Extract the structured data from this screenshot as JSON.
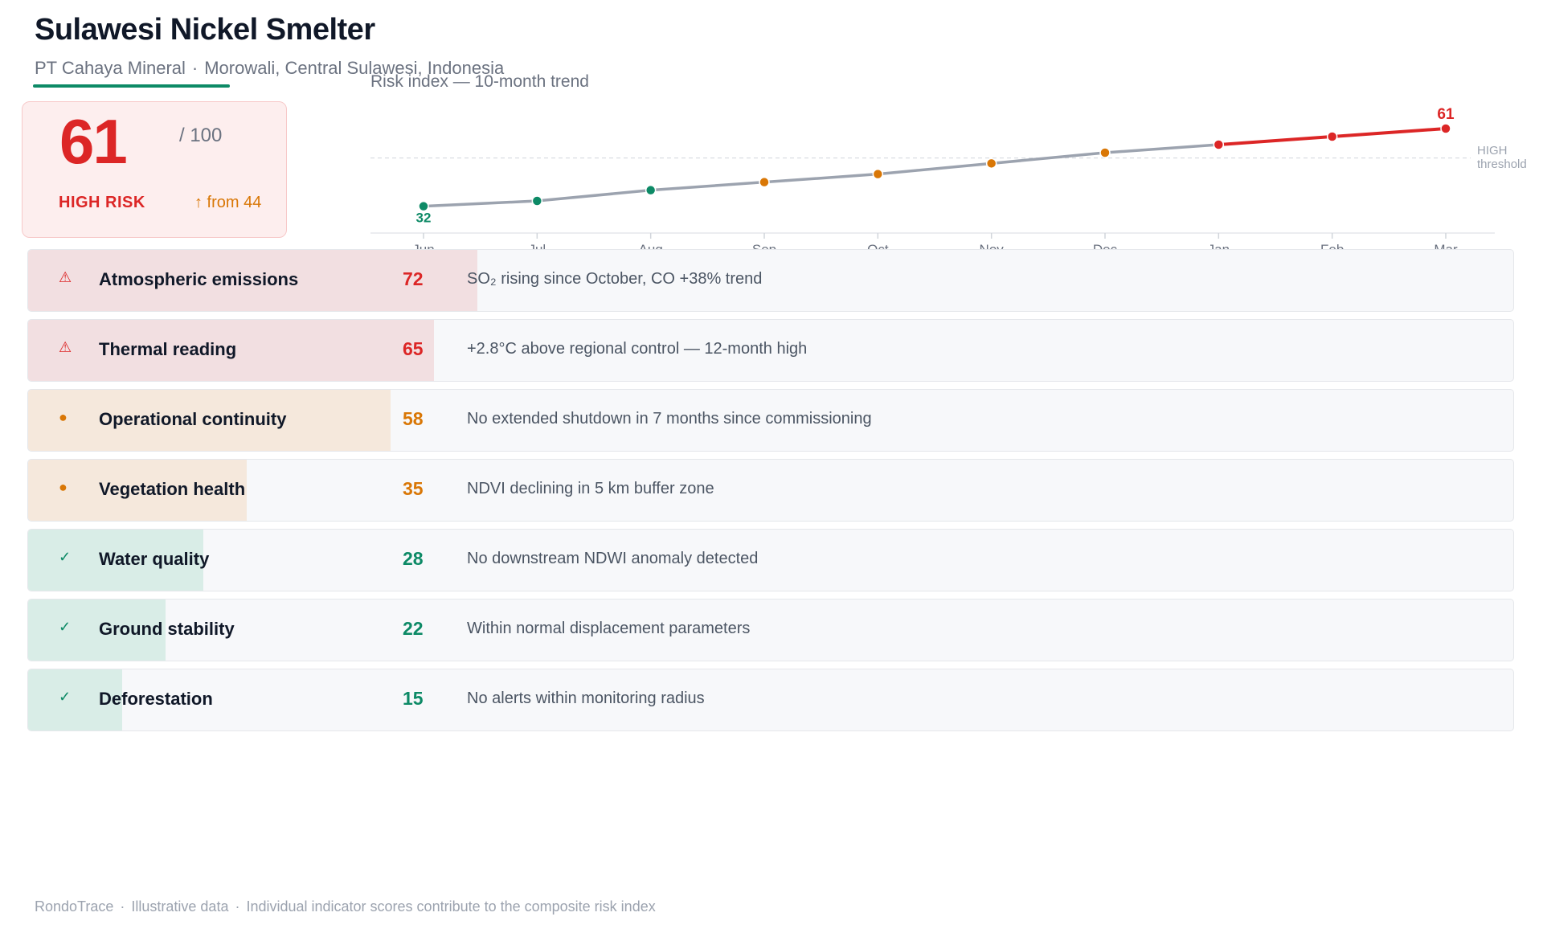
{
  "header": {
    "title": "Sulawesi Nickel Smelter",
    "company": "PT Cahaya Mineral",
    "separator": "·",
    "location": "Morowali, Central Sulawesi, Indonesia"
  },
  "score": {
    "value": "61",
    "max_label": "/ 100",
    "level": "HIGH RISK",
    "change_text": "↑ from 44"
  },
  "colors": {
    "high": "#dc2626",
    "medium": "#d97706",
    "low": "#0d8a66",
    "line": "#9ca3af"
  },
  "chart_data": {
    "type": "line",
    "title": "Risk index — 10-month trend",
    "x": [
      "Jun",
      "Jul",
      "Aug",
      "Sep",
      "Oct",
      "Nov",
      "Dec",
      "Jan",
      "Feb",
      "Mar"
    ],
    "series": [
      {
        "values": [
          32,
          34,
          38,
          41,
          44,
          48,
          52,
          55,
          58,
          61
        ]
      }
    ],
    "threshold": {
      "value": 50,
      "label": [
        "HIGH",
        "threshold"
      ]
    },
    "value_labels": {
      "first": "32",
      "last": "61"
    },
    "ylim": [
      28,
      64
    ]
  },
  "indicators": [
    {
      "name": "Atmospheric emissions",
      "score": "72",
      "level": "high",
      "icon": "⚠",
      "icon_name": "alert-icon",
      "description": "SO₂ rising since October, CO +38% trend"
    },
    {
      "name": "Thermal reading",
      "score": "65",
      "level": "high",
      "icon": "⚠",
      "icon_name": "alert-icon",
      "description": "+2.8°C above regional control — 12-month high"
    },
    {
      "name": "Operational continuity",
      "score": "58",
      "level": "medium",
      "icon": "●",
      "icon_name": "caution-icon",
      "description": "No extended shutdown in 7 months since commissioning"
    },
    {
      "name": "Vegetation health",
      "score": "35",
      "level": "medium",
      "icon": "●",
      "icon_name": "caution-icon",
      "description": "NDVI declining in 5 km buffer zone"
    },
    {
      "name": "Water quality",
      "score": "28",
      "level": "low",
      "icon": "✓",
      "icon_name": "check-icon",
      "description": "No downstream NDWI anomaly detected"
    },
    {
      "name": "Ground stability",
      "score": "22",
      "level": "low",
      "icon": "✓",
      "icon_name": "check-icon",
      "description": "Within normal displacement parameters"
    },
    {
      "name": "Deforestation",
      "score": "15",
      "level": "low",
      "icon": "✓",
      "icon_name": "check-icon",
      "description": "No alerts within monitoring radius"
    }
  ],
  "footer": {
    "brand": "RondoTrace",
    "separator": "·",
    "note1": "Illustrative data",
    "note2": "Individual indicator scores contribute to the composite risk index"
  }
}
